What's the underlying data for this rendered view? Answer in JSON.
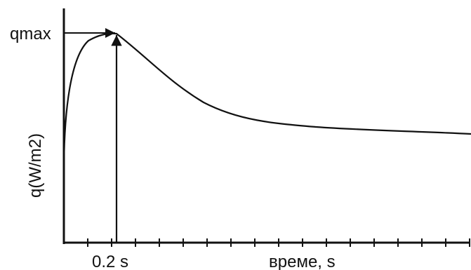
{
  "chart_data": {
    "type": "line",
    "ylabel": "q(W/m2)",
    "xlabel": "време, s",
    "peak_label": "qmax",
    "peak_time_label": "0.2 s",
    "peak_time": 0.2,
    "x_tick_count": 17,
    "curve_color": "#111111",
    "axis_color": "#111111"
  }
}
